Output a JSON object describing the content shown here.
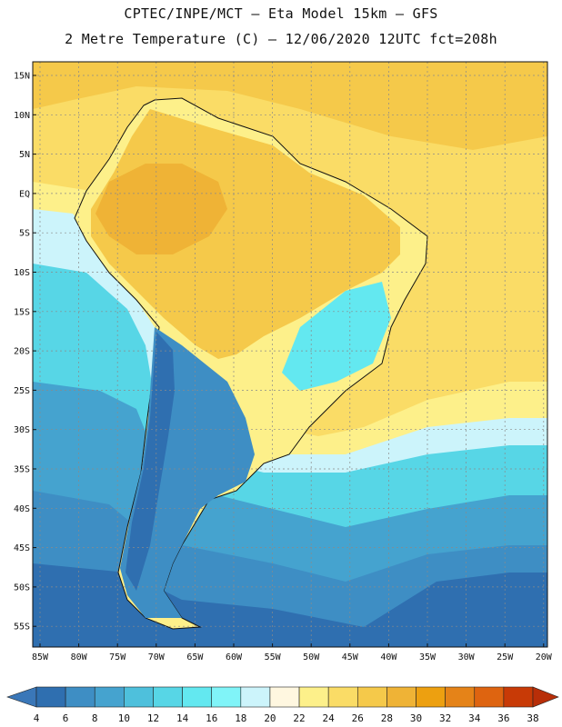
{
  "title_line1": "CPTEC/INPE/MCT –  Eta Model 15km – GFS",
  "title_line2": "2 Metre Temperature (C) – 12/06/2020 12UTC fct=208h",
  "lat_labels": [
    "15N",
    "10N",
    "5N",
    "EQ",
    "5S",
    "10S",
    "15S",
    "20S",
    "25S",
    "30S",
    "35S",
    "40S",
    "45S",
    "50S",
    "55S"
  ],
  "lon_labels": [
    "85W",
    "80W",
    "75W",
    "70W",
    "65W",
    "60W",
    "55W",
    "50W",
    "45W",
    "40W",
    "35W",
    "30W",
    "25W",
    "20W"
  ],
  "colorbar": {
    "labels": [
      "4",
      "6",
      "8",
      "10",
      "12",
      "14",
      "16",
      "18",
      "20",
      "22",
      "24",
      "26",
      "28",
      "30",
      "32",
      "34",
      "36",
      "38"
    ],
    "colors": [
      "#3a77b8",
      "#2f6fb0",
      "#3e8ec4",
      "#45a3cf",
      "#4ec0dc",
      "#57d6e6",
      "#63e8f0",
      "#80f4f8",
      "#ccf4fb",
      "#fff7e0",
      "#fdf08a",
      "#fadc66",
      "#f5c94a",
      "#efb336",
      "#eda010",
      "#e58318",
      "#de6410",
      "#c83a06",
      "#b82e08"
    ]
  },
  "map_colors": {
    "ocean_warm": "#fadc66",
    "ocean_warmer": "#f5c94a",
    "ocean_mid": "#fdf08a",
    "ocean_cool1": "#ccf4fb",
    "ocean_cool2": "#57d6e6",
    "ocean_cool3": "#45a3cf",
    "ocean_cold": "#3e8ec4",
    "ocean_coldest": "#2f6fb0",
    "land_hot": "#efb336",
    "land_warm": "#f5c94a",
    "land_mild": "#fdf08a",
    "land_andes": "#2f6fb0",
    "land_patagonia": "#3e8ec4",
    "land_cool": "#63e8f0"
  }
}
